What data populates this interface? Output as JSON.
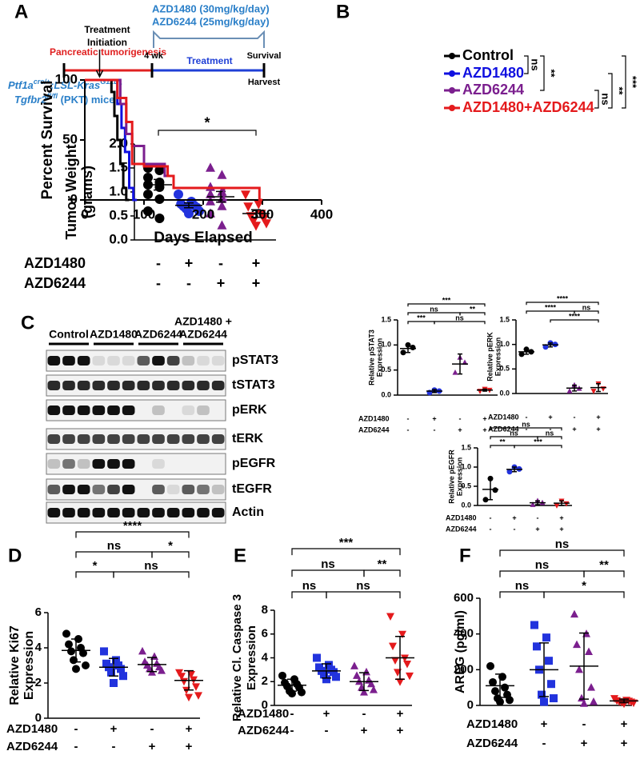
{
  "panel_labels": [
    "A",
    "B",
    "C",
    "D",
    "E",
    "F"
  ],
  "timeline": {
    "dose": [
      "AZD1480 (30mg/kg/day)",
      "AZD6244 (25mg/kg/day)"
    ],
    "phase1": "Pancreatic tumorigenesis",
    "start": "4 wk",
    "phase2": "Treatment",
    "end": "Survival",
    "harvest": "Harvest",
    "mouse_line": [
      [
        {
          "text": "Ptf1a",
          "italic": true
        },
        {
          "text": "cre/+",
          "sup": true,
          "italic": true
        },
        {
          "text": ";LSL-Kras",
          "italic": true
        },
        {
          "text": "G12D",
          "sup": true,
          "italic": true
        },
        {
          "text": ";",
          "italic": true
        }
      ],
      [
        {
          "text": "Tgfbr2",
          "italic": true
        },
        {
          "text": "fl/fl",
          "sup": true,
          "italic": true
        },
        {
          "text": " (PKT) mice"
        }
      ]
    ]
  },
  "blot": {
    "groups": [
      [
        "Control"
      ],
      [
        "AZD1480"
      ],
      [
        "AZD6244"
      ],
      [
        "AZD1480 +",
        "AZD6244"
      ]
    ],
    "rows": [
      "pSTAT3",
      "tSTAT3",
      "pERK",
      "tERK",
      "pEGFR",
      "tEGFR",
      "Actin"
    ]
  },
  "chart_data": [
    {
      "type": "dotplot",
      "ylabel": [
        "Tumor Weight",
        "(grams)"
      ],
      "ylim": [
        0,
        2
      ],
      "yticks": [
        {
          "value": 0,
          "label": "0.0"
        },
        0.5,
        {
          "value": 1,
          "label": "1.0"
        },
        1.5,
        {
          "value": 2,
          "label": "2.0"
        }
      ],
      "groups": [
        {
          "color": "#000000",
          "marker": "circle",
          "values": [
            1.5,
            1.45,
            1.3,
            1.2,
            1.15,
            1.1,
            0.95,
            0.85,
            0.6,
            0.45
          ],
          "mean": 1.15,
          "error": 0.11
        },
        {
          "color": "#2233dd",
          "marker": "circle",
          "values": [
            0.95,
            0.8,
            0.75,
            0.72,
            0.7,
            0.68,
            0.65,
            0.6,
            0.55
          ],
          "mean": 0.72,
          "error": 0.05
        },
        {
          "color": "#7b1f8e",
          "marker": "triangle",
          "values": [
            1.5,
            1.35,
            1.1,
            1.0,
            0.95,
            0.85,
            0.8,
            0.7,
            0.55,
            0.3
          ],
          "mean": 0.9,
          "error": 0.11
        },
        {
          "color": "#e41a1c",
          "marker": "triangle-down",
          "values": [
            0.95,
            0.75,
            0.7,
            0.55,
            0.5,
            0.45,
            0.4,
            0.35,
            0.3
          ],
          "mean": 0.55,
          "error": 0.08
        }
      ],
      "conditions": [
        {
          "name": "AZD1480",
          "signs": [
            "-",
            "+",
            "-",
            "+"
          ]
        },
        {
          "name": "AZD6244",
          "signs": [
            "-",
            "-",
            "+",
            "+"
          ]
        }
      ],
      "brackets": [
        {
          "from": 0,
          "to": 3,
          "label": "*"
        }
      ]
    },
    {
      "type": "survival",
      "ylabel": "Percent Survival",
      "xlabel": "Days Elapsed",
      "xlim": [
        0,
        400
      ],
      "xticks": [
        0,
        100,
        200,
        300,
        400
      ],
      "ylim": [
        0,
        100
      ],
      "yticks": [
        0,
        50,
        100
      ],
      "annotation": [
        "Treatment",
        "Initiation"
      ],
      "annotation_x": 25,
      "series": [
        {
          "name": "Control",
          "color": "#000000",
          "x": [
            0,
            45,
            45,
            50,
            50,
            55,
            55,
            60,
            60,
            65,
            65,
            70,
            70,
            75
          ],
          "values": [
            100,
            100,
            90,
            90,
            70,
            70,
            50,
            50,
            30,
            30,
            10,
            10,
            0,
            0
          ]
        },
        {
          "name": "AZD1480",
          "color": "#1010e0",
          "x": [
            0,
            55,
            55,
            62,
            62,
            68,
            68,
            75,
            75,
            82,
            82,
            88
          ],
          "values": [
            100,
            100,
            80,
            80,
            60,
            60,
            40,
            40,
            10,
            10,
            0,
            0
          ]
        },
        {
          "name": "AZD6244",
          "color": "#7b1f8e",
          "x": [
            0,
            60,
            60,
            70,
            70,
            80,
            80,
            100,
            100,
            135,
            135,
            150,
            150,
            235,
            235,
            240
          ],
          "values": [
            100,
            100,
            80,
            80,
            55,
            55,
            45,
            45,
            30,
            30,
            20,
            20,
            10,
            10,
            0,
            0
          ]
        },
        {
          "name": "AZD1480+AZD6244",
          "color": "#e41a1c",
          "x": [
            0,
            55,
            55,
            70,
            70,
            80,
            80,
            100,
            100,
            140,
            140,
            150,
            150,
            295,
            295,
            300
          ],
          "values": [
            100,
            100,
            85,
            85,
            65,
            65,
            30,
            30,
            28,
            28,
            20,
            20,
            10,
            10,
            0,
            0
          ]
        }
      ],
      "brackets": [
        {
          "from": 0,
          "to": 1,
          "label": "ns"
        },
        {
          "from": 0,
          "to": 2,
          "label": "**"
        },
        {
          "from": 2,
          "to": 3,
          "label": "ns"
        },
        {
          "from": 1,
          "to": 3,
          "label": "**"
        },
        {
          "from": 0,
          "to": 3,
          "label": "***"
        }
      ]
    },
    {
      "type": "dotplot",
      "ylabel": [
        "Relative pSTAT3",
        "Expression"
      ],
      "ylim": [
        0,
        1.5
      ],
      "yticks": [
        {
          "value": 0,
          "label": "0.0"
        },
        0.5,
        {
          "value": 1,
          "label": "1.0"
        },
        1.5
      ],
      "groups": [
        {
          "color": "#000000",
          "marker": "circle",
          "values": [
            0.85,
            0.95,
            1.0
          ],
          "mean": 0.93,
          "error": 0.08
        },
        {
          "color": "#2233dd",
          "marker": "circle",
          "values": [
            0.05,
            0.08,
            0.1
          ],
          "mean": 0.08,
          "error": 0.03
        },
        {
          "color": "#7b1f8e",
          "marker": "triangle",
          "values": [
            0.45,
            0.65,
            0.75
          ],
          "mean": 0.62,
          "error": 0.2
        },
        {
          "color": "#e41a1c",
          "marker": "triangle-down",
          "values": [
            0.08,
            0.1,
            0.12
          ],
          "mean": 0.1,
          "error": 0.02
        }
      ],
      "conditions": [
        {
          "name": "AZD1480",
          "signs": [
            "-",
            "+",
            "-",
            "+"
          ]
        },
        {
          "name": "AZD6244",
          "signs": [
            "-",
            "-",
            "+",
            "+"
          ]
        }
      ],
      "brackets": [
        {
          "from": 0,
          "to": 3,
          "label": "***"
        },
        {
          "from": 0,
          "to": 2,
          "label": "ns"
        },
        {
          "from": 2,
          "to": 3,
          "label": "**"
        },
        {
          "from": 0,
          "to": 1,
          "label": "***"
        },
        {
          "from": 1,
          "to": 3,
          "label": "ns"
        }
      ]
    },
    {
      "type": "dotplot",
      "ylabel": [
        "Relative pERK",
        "Expression"
      ],
      "ylim": [
        0,
        1.5
      ],
      "yticks": [
        {
          "value": 0,
          "label": "0.0"
        },
        0.5,
        {
          "value": 1,
          "label": "1.0"
        },
        1.5
      ],
      "groups": [
        {
          "color": "#000000",
          "marker": "circle",
          "values": [
            0.8,
            0.85,
            0.9
          ],
          "mean": 0.85,
          "error": 0.05
        },
        {
          "color": "#2233dd",
          "marker": "circle",
          "values": [
            0.95,
            1.0,
            1.03
          ],
          "mean": 0.99,
          "error": 0.04
        },
        {
          "color": "#7b1f8e",
          "marker": "triangle",
          "values": [
            0.05,
            0.1,
            0.17
          ],
          "mean": 0.11,
          "error": 0.06
        },
        {
          "color": "#e41a1c",
          "marker": "triangle-down",
          "values": [
            0.05,
            0.1,
            0.2
          ],
          "mean": 0.12,
          "error": 0.08
        }
      ],
      "conditions": [
        {
          "name": "AZD1480",
          "signs": [
            "-",
            "+",
            "-",
            "+"
          ]
        },
        {
          "name": "AZD6244",
          "signs": [
            "-",
            "-",
            "+",
            "+"
          ]
        }
      ],
      "brackets": [
        {
          "from": 0,
          "to": 3,
          "label": "****"
        },
        {
          "from": 0,
          "to": 2,
          "label": "****"
        },
        {
          "from": 2,
          "to": 3,
          "label": "ns"
        },
        {
          "from": 1,
          "to": 3,
          "label": "****"
        }
      ]
    },
    {
      "type": "dotplot",
      "ylabel": [
        "Relative pEGFR",
        "Expression"
      ],
      "ylim": [
        0,
        1.5
      ],
      "yticks": [
        {
          "value": 0,
          "label": "0.0"
        },
        0.5,
        {
          "value": 1,
          "label": "1.0"
        },
        1.5
      ],
      "groups": [
        {
          "color": "#000000",
          "marker": "circle",
          "values": [
            0.15,
            0.4,
            0.7
          ],
          "mean": 0.42,
          "error": 0.27
        },
        {
          "color": "#2233dd",
          "marker": "circle",
          "values": [
            0.88,
            0.95,
            1.0
          ],
          "mean": 0.94,
          "error": 0.06
        },
        {
          "color": "#7b1f8e",
          "marker": "triangle",
          "values": [
            0.02,
            0.07,
            0.12
          ],
          "mean": 0.07,
          "error": 0.05
        },
        {
          "color": "#e41a1c",
          "marker": "triangle-down",
          "values": [
            0.0,
            0.05,
            0.12
          ],
          "mean": 0.06,
          "error": 0.06
        }
      ],
      "conditions": [
        {
          "name": "AZD1480",
          "signs": [
            "-",
            "+",
            "-",
            "+"
          ]
        },
        {
          "name": "AZD6244",
          "signs": [
            "-",
            "-",
            "+",
            "+"
          ]
        }
      ],
      "brackets": [
        {
          "from": 0,
          "to": 3,
          "label": "ns"
        },
        {
          "from": 0,
          "to": 2,
          "label": "ns"
        },
        {
          "from": 2,
          "to": 3,
          "label": "ns"
        },
        {
          "from": 0,
          "to": 1,
          "label": "**"
        },
        {
          "from": 1,
          "to": 3,
          "label": "***"
        }
      ]
    },
    {
      "type": "dotplot",
      "ylabel": [
        "Relative Ki67",
        "Expression"
      ],
      "ylim": [
        0,
        6
      ],
      "yticks": [
        0,
        2,
        4,
        6
      ],
      "groups": [
        {
          "color": "#000000",
          "marker": "circle",
          "values": [
            4.8,
            4.5,
            4.2,
            4.0,
            3.8,
            3.7,
            3.3,
            3.0,
            2.8
          ],
          "mean": 3.85,
          "error": 0.65
        },
        {
          "color": "#2233dd",
          "marker": "square",
          "values": [
            3.8,
            3.3,
            3.1,
            3.0,
            2.9,
            2.8,
            2.6,
            2.4,
            2.0
          ],
          "mean": 2.9,
          "error": 0.5
        },
        {
          "color": "#7b1f8e",
          "marker": "triangle",
          "values": [
            3.8,
            3.5,
            3.2,
            3.1,
            3.0,
            2.9,
            2.8,
            2.7,
            2.6
          ],
          "mean": 3.05,
          "error": 0.4
        },
        {
          "color": "#e41a1c",
          "marker": "triangle-down",
          "values": [
            2.6,
            2.5,
            2.4,
            2.2,
            2.1,
            1.8,
            1.6,
            1.3,
            1.2
          ],
          "mean": 2.15,
          "error": 0.55
        }
      ],
      "conditions": [
        {
          "name": "AZD1480",
          "signs": [
            "-",
            "+",
            "-",
            "+"
          ]
        },
        {
          "name": "AZD6244",
          "signs": [
            "-",
            "-",
            "+",
            "+"
          ]
        }
      ],
      "brackets": [
        {
          "from": 0,
          "to": 3,
          "label": "****"
        },
        {
          "from": 0,
          "to": 2,
          "label": "ns"
        },
        {
          "from": 2,
          "to": 3,
          "label": "*"
        },
        {
          "from": 0,
          "to": 1,
          "label": "*"
        },
        {
          "from": 1,
          "to": 3,
          "label": "ns"
        }
      ]
    },
    {
      "type": "dotplot",
      "ylabel": [
        "Relative Cl. Caspase 3",
        "Expression"
      ],
      "ylim": [
        0,
        8
      ],
      "yticks": [
        0,
        2,
        4,
        6,
        8
      ],
      "groups": [
        {
          "color": "#000000",
          "marker": "circle",
          "values": [
            2.5,
            2.2,
            1.9,
            1.8,
            1.6,
            1.5,
            1.2,
            1.1,
            1.0
          ],
          "mean": 1.7,
          "error": 0.5
        },
        {
          "color": "#2233dd",
          "marker": "square",
          "values": [
            4.0,
            3.4,
            3.2,
            3.0,
            2.9,
            2.8,
            2.6,
            2.4,
            2.2
          ],
          "mean": 2.9,
          "error": 0.6
        },
        {
          "color": "#7b1f8e",
          "marker": "triangle",
          "values": [
            3.3,
            2.8,
            2.5,
            2.1,
            2.0,
            1.8,
            1.5,
            1.3,
            1.1
          ],
          "mean": 2.0,
          "error": 0.75
        },
        {
          "color": "#e41a1c",
          "marker": "triangle-down",
          "values": [
            7.5,
            6.0,
            5.0,
            4.0,
            3.8,
            3.5,
            2.8,
            2.5,
            2.0
          ],
          "mean": 4.0,
          "error": 1.8
        }
      ],
      "conditions": [
        {
          "name": "AZD1480",
          "signs": [
            "-",
            "+",
            "-",
            "+"
          ]
        },
        {
          "name": "AZD6244",
          "signs": [
            "-",
            "-",
            "+",
            "+"
          ]
        }
      ],
      "brackets": [
        {
          "from": 0,
          "to": 3,
          "label": "***"
        },
        {
          "from": 0,
          "to": 2,
          "label": "ns"
        },
        {
          "from": 2,
          "to": 3,
          "label": "**"
        },
        {
          "from": 0,
          "to": 1,
          "label": "ns"
        },
        {
          "from": 1,
          "to": 3,
          "label": "ns"
        }
      ]
    },
    {
      "type": "dotplot",
      "ylabel": [
        "AREG (pg/ml)"
      ],
      "ylim": [
        0,
        600
      ],
      "yticks": [
        0,
        200,
        400,
        600
      ],
      "groups": [
        {
          "color": "#000000",
          "marker": "circle",
          "values": [
            220,
            160,
            130,
            100,
            80,
            60,
            40,
            30,
            20
          ],
          "mean": 110,
          "error": 65
        },
        {
          "color": "#2233dd",
          "marker": "square",
          "values": [
            450,
            380,
            330,
            250,
            200,
            120,
            60,
            40,
            20
          ],
          "mean": 200,
          "error": 150
        },
        {
          "color": "#7b1f8e",
          "marker": "triangle",
          "values": [
            510,
            400,
            340,
            300,
            200,
            100,
            40,
            20,
            10
          ],
          "mean": 220,
          "error": 185
        },
        {
          "color": "#e41a1c",
          "marker": "triangle-down",
          "values": [
            40,
            30,
            28,
            25,
            22,
            20,
            18,
            15,
            10
          ],
          "mean": 25,
          "error": 10
        }
      ],
      "conditions": [
        {
          "name": "AZD1480",
          "signs": [
            "-",
            "+",
            "-",
            "+"
          ]
        },
        {
          "name": "AZD6244",
          "signs": [
            "-",
            "-",
            "+",
            "+"
          ]
        }
      ],
      "brackets": [
        {
          "from": 0,
          "to": 3,
          "label": "ns"
        },
        {
          "from": 0,
          "to": 2,
          "label": "ns"
        },
        {
          "from": 2,
          "to": 3,
          "label": "**"
        },
        {
          "from": 0,
          "to": 1,
          "label": "ns"
        },
        {
          "from": 1,
          "to": 3,
          "label": "*"
        }
      ]
    }
  ]
}
